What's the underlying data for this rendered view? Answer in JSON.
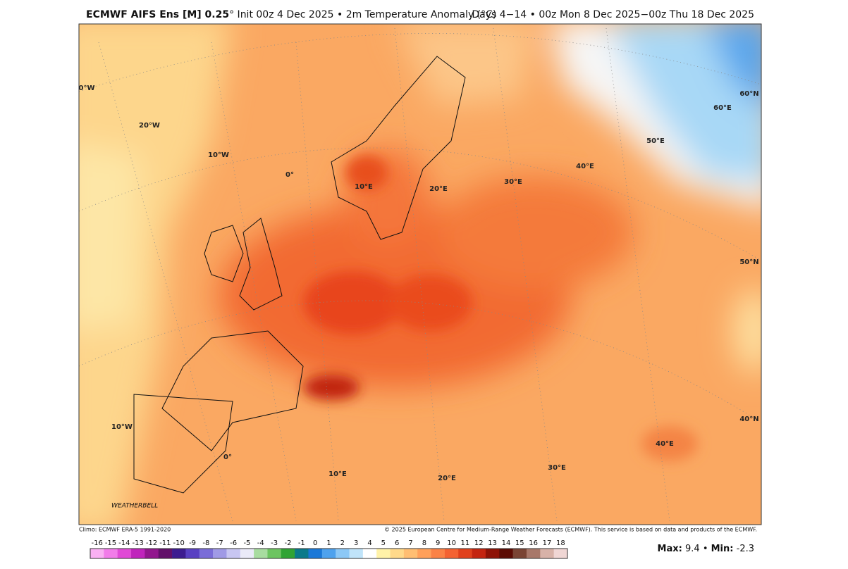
{
  "header": {
    "model": "ECMWF AIFS Ens [M] 0.25",
    "details": "° Init 00z 4 Dec 2025 • 2m Temperature Anomaly (°C)",
    "valid": "Days 4−14 • 00z Mon 8 Dec 2025−00z Thu 18 Dec 2025"
  },
  "map": {
    "labels": [
      "0°W",
      "20°W",
      "10°W",
      "0°",
      "10°E",
      "20°E",
      "30°E",
      "40°E",
      "50°E",
      "60°E",
      "60°N",
      "50°N",
      "40°N",
      "10°W",
      "0°",
      "10°E",
      "20°E",
      "30°E",
      "40°E"
    ],
    "logo": "WEATHERBELL"
  },
  "footer": {
    "climo": "Climo: ECMWF ERA-5 1991-2020",
    "copyright": "© 2025 European Centre for Medium-Range Weather Forecasts (ECMWF). This service is based on data and products of the ECMWF."
  },
  "colorbar": {
    "ticks": [
      -16,
      -15,
      -14,
      -13,
      -12,
      -11,
      -10,
      -9,
      -8,
      -7,
      -6,
      -5,
      -4,
      -3,
      -2,
      -1,
      0,
      1,
      2,
      3,
      4,
      5,
      6,
      7,
      8,
      9,
      10,
      11,
      12,
      13,
      14,
      15,
      16,
      17,
      18
    ],
    "colors": [
      "#f9b0f2",
      "#f27ce9",
      "#e04ad6",
      "#c024bc",
      "#92168e",
      "#62106a",
      "#3c1c90",
      "#5840c2",
      "#7a6cd8",
      "#a09ae6",
      "#c8c6f2",
      "#eaeaf8",
      "#a8dca0",
      "#6cc460",
      "#30a434",
      "#0a7a8a",
      "#1a78d8",
      "#4ea2ee",
      "#8cc8f6",
      "#c0e4fa",
      "#ffffff",
      "#fff2a8",
      "#ffd98a",
      "#ffbe72",
      "#ffa05a",
      "#fb8246",
      "#f46232",
      "#e0401c",
      "#c42410",
      "#8e1206",
      "#5c0c04",
      "#7a4434",
      "#a8786a",
      "#d8b2a8",
      "#f0d6d4"
    ]
  },
  "stats": {
    "max_label": "Max:",
    "max": 9.4,
    "separator": "•",
    "min_label": "Min:",
    "min": -2.3
  }
}
